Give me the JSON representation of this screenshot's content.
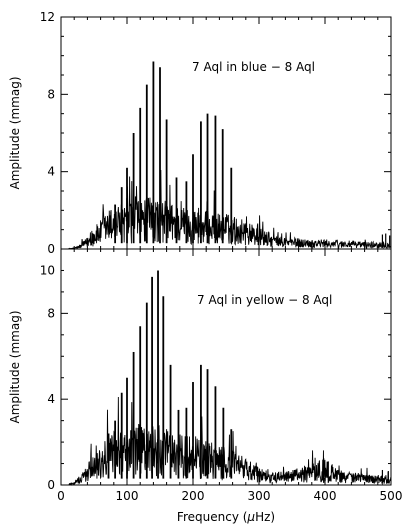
{
  "chart_data": [
    {
      "type": "line",
      "panel": "top",
      "annotation": "7 Aql in blue − 8 Aql",
      "ylabel": "Amplitude (mmag)",
      "xlabel": "",
      "xlim": [
        0,
        500
      ],
      "ylim": [
        0,
        12
      ],
      "xticks": [
        0,
        100,
        200,
        300,
        400,
        500
      ],
      "yticks": [
        0,
        4,
        8,
        12
      ],
      "line_color": "#000000",
      "grid": false,
      "peaks": [
        {
          "x": 82,
          "y": 2.3
        },
        {
          "x": 92,
          "y": 3.2
        },
        {
          "x": 100,
          "y": 4.2
        },
        {
          "x": 110,
          "y": 6.0
        },
        {
          "x": 120,
          "y": 7.3
        },
        {
          "x": 130,
          "y": 8.5
        },
        {
          "x": 140,
          "y": 9.7
        },
        {
          "x": 150,
          "y": 9.4
        },
        {
          "x": 160,
          "y": 6.7
        },
        {
          "x": 175,
          "y": 3.7
        },
        {
          "x": 190,
          "y": 3.5
        },
        {
          "x": 200,
          "y": 4.9
        },
        {
          "x": 212,
          "y": 6.6
        },
        {
          "x": 222,
          "y": 7.0
        },
        {
          "x": 234,
          "y": 6.9
        },
        {
          "x": 245,
          "y": 6.2
        },
        {
          "x": 258,
          "y": 4.2
        }
      ],
      "envelope": [
        [
          0,
          0.0
        ],
        [
          20,
          0.05
        ],
        [
          30,
          0.2
        ],
        [
          40,
          0.5
        ],
        [
          50,
          0.9
        ],
        [
          60,
          1.2
        ],
        [
          70,
          1.6
        ],
        [
          80,
          1.8
        ],
        [
          100,
          1.9
        ],
        [
          120,
          2.0
        ],
        [
          140,
          2.2
        ],
        [
          160,
          2.0
        ],
        [
          180,
          1.8
        ],
        [
          200,
          1.7
        ],
        [
          220,
          1.6
        ],
        [
          240,
          1.5
        ],
        [
          260,
          1.4
        ],
        [
          280,
          1.2
        ],
        [
          300,
          0.9
        ],
        [
          320,
          0.6
        ],
        [
          340,
          0.5
        ],
        [
          360,
          0.45
        ],
        [
          380,
          0.4
        ],
        [
          400,
          0.4
        ],
        [
          420,
          0.35
        ],
        [
          440,
          0.35
        ],
        [
          460,
          0.3
        ],
        [
          480,
          0.3
        ],
        [
          500,
          0.3
        ]
      ],
      "spikes": [
        [
          487,
          0.75
        ],
        [
          492,
          0.8
        ],
        [
          498,
          0.7
        ]
      ]
    },
    {
      "type": "line",
      "panel": "bottom",
      "annotation": "7 Aql in yellow − 8 Aql",
      "ylabel": "Amplitude (mmag)",
      "xlabel": "Frequency (μHz)",
      "xlim": [
        0,
        500
      ],
      "ylim": [
        0,
        11
      ],
      "xticks": [
        0,
        100,
        200,
        300,
        400,
        500
      ],
      "yticks": [
        0,
        4,
        8,
        10
      ],
      "line_color": "#000000",
      "grid": false,
      "peaks": [
        {
          "x": 72,
          "y": 2.4
        },
        {
          "x": 82,
          "y": 3.0
        },
        {
          "x": 92,
          "y": 4.3
        },
        {
          "x": 100,
          "y": 5.0
        },
        {
          "x": 110,
          "y": 6.2
        },
        {
          "x": 120,
          "y": 7.4
        },
        {
          "x": 130,
          "y": 8.5
        },
        {
          "x": 138,
          "y": 9.7
        },
        {
          "x": 147,
          "y": 10.0
        },
        {
          "x": 155,
          "y": 8.8
        },
        {
          "x": 166,
          "y": 5.6
        },
        {
          "x": 178,
          "y": 3.5
        },
        {
          "x": 190,
          "y": 3.6
        },
        {
          "x": 200,
          "y": 4.8
        },
        {
          "x": 212,
          "y": 5.6
        },
        {
          "x": 222,
          "y": 5.4
        },
        {
          "x": 234,
          "y": 4.6
        },
        {
          "x": 246,
          "y": 3.6
        },
        {
          "x": 258,
          "y": 2.6
        }
      ],
      "envelope": [
        [
          0,
          0.0
        ],
        [
          20,
          0.1
        ],
        [
          30,
          0.4
        ],
        [
          40,
          0.8
        ],
        [
          50,
          1.2
        ],
        [
          60,
          1.6
        ],
        [
          70,
          1.9
        ],
        [
          80,
          2.1
        ],
        [
          100,
          2.2
        ],
        [
          120,
          2.3
        ],
        [
          140,
          2.3
        ],
        [
          160,
          2.1
        ],
        [
          180,
          1.9
        ],
        [
          200,
          1.8
        ],
        [
          220,
          1.7
        ],
        [
          240,
          1.5
        ],
        [
          260,
          1.3
        ],
        [
          280,
          1.0
        ],
        [
          300,
          0.7
        ],
        [
          320,
          0.5
        ],
        [
          340,
          0.5
        ],
        [
          360,
          0.65
        ],
        [
          380,
          0.85
        ],
        [
          395,
          1.0
        ],
        [
          410,
          0.8
        ],
        [
          430,
          0.55
        ],
        [
          450,
          0.45
        ],
        [
          470,
          0.4
        ],
        [
          490,
          0.35
        ],
        [
          500,
          0.35
        ]
      ],
      "spikes": [
        [
          398,
          1.25
        ],
        [
          405,
          1.1
        ],
        [
          487,
          0.7
        ],
        [
          496,
          0.65
        ]
      ]
    }
  ]
}
